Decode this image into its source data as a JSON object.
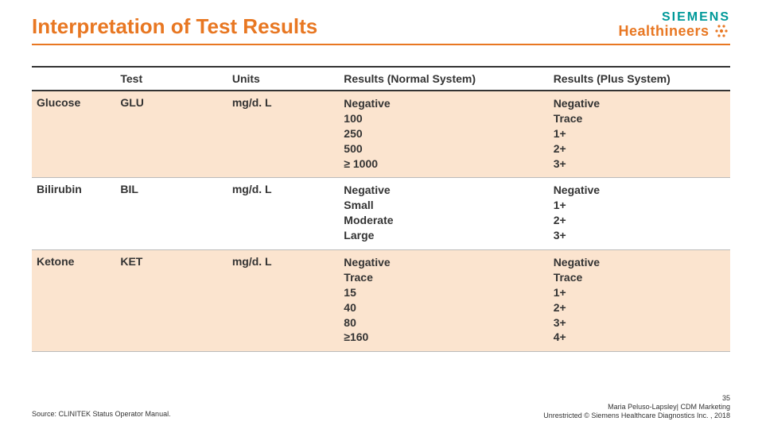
{
  "title": "Interpretation of Test Results",
  "logo": {
    "siemens": "SIEMENS",
    "health": "Healthineers"
  },
  "columns": {
    "c0": "",
    "c1": "Test",
    "c2": "Units",
    "c3": "Results (Normal System)",
    "c4": "Results (Plus System)"
  },
  "rows": [
    {
      "name": "Glucose",
      "test": "GLU",
      "units": "mg/d. L",
      "normal": "Negative\n100\n250\n500\n≥ 1000",
      "plus": "Negative\nTrace\n1+\n2+\n3+",
      "shade": true
    },
    {
      "name": "Bilirubin",
      "test": "BIL",
      "units": "mg/d. L",
      "normal": "Negative\nSmall\nModerate\nLarge",
      "plus": "Negative\n1+\n2+\n3+",
      "shade": false
    },
    {
      "name": "Ketone",
      "test": "KET",
      "units": "mg/d. L",
      "normal": "Negative\nTrace\n15\n40\n80\n≥160",
      "plus": "Negative\nTrace\n1+\n2+\n3+\n4+",
      "shade": true
    }
  ],
  "footer": {
    "source": "Source:  CLINITEK Status Operator Manual.",
    "author": "Maria Peluso-Lapsley| CDM Marketing",
    "copyright": "Unrestricted © Siemens Healthcare Diagnostics Inc. , 2018",
    "page": "35"
  },
  "colors": {
    "accent": "#e87722",
    "shade": "#fbe4cf",
    "teal": "#009999",
    "border": "#333333"
  }
}
